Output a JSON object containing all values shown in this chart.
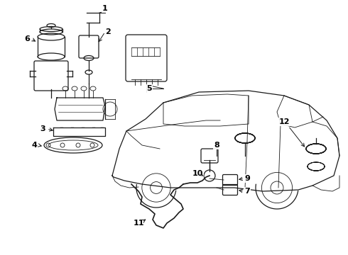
{
  "background_color": "#ffffff",
  "line_color": "#1a1a1a",
  "figsize": [
    4.9,
    3.6
  ],
  "dpi": 100,
  "xlim": [
    0,
    490
  ],
  "ylim": [
    0,
    360
  ]
}
